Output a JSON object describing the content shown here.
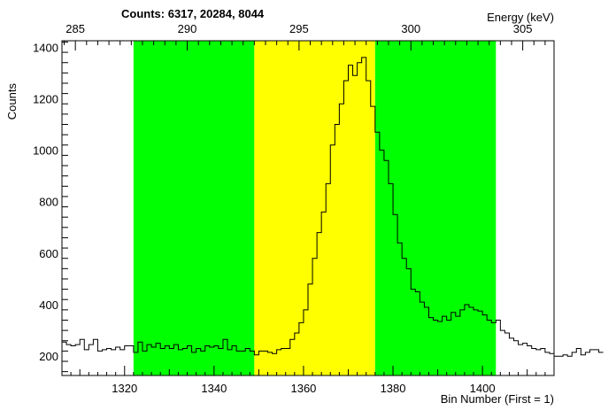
{
  "chart_data": {
    "type": "histogram",
    "title": "Counts:   6317,   20284,   8044",
    "xlabel": "Bin Number (First = 1)",
    "ylabel": "Counts",
    "top_axis_label": "Energy (keV)",
    "xlim": [
      1306,
      1416
    ],
    "ylim": [
      125,
      1425
    ],
    "grid": false,
    "x_ticks": [
      1320,
      1340,
      1360,
      1380,
      1400
    ],
    "y_ticks": [
      200,
      400,
      600,
      800,
      1000,
      1200,
      1400
    ],
    "energy_ticks": [
      285,
      290,
      295,
      300,
      305
    ],
    "energy_calibration": {
      "bin_ref": 1360,
      "energy_ref": 295.2,
      "kev_per_bin": 0.2
    },
    "regions": [
      {
        "from": 1322,
        "to": 1349,
        "color": "#00ff00"
      },
      {
        "from": 1349,
        "to": 1376,
        "color": "#ffff00"
      },
      {
        "from": 1376,
        "to": 1403,
        "color": "#00ff00"
      }
    ],
    "bins_start": 1306,
    "bin_width": 1,
    "values": [
      255,
      245,
      240,
      245,
      265,
      225,
      245,
      265,
      220,
      225,
      230,
      225,
      235,
      225,
      240,
      240,
      215,
      255,
      220,
      245,
      235,
      250,
      230,
      240,
      230,
      245,
      225,
      230,
      240,
      215,
      230,
      220,
      240,
      235,
      240,
      230,
      265,
      225,
      240,
      220,
      220,
      230,
      220,
      205,
      220,
      220,
      215,
      210,
      225,
      230,
      230,
      265,
      290,
      330,
      380,
      480,
      580,
      680,
      760,
      870,
      1020,
      1100,
      1180,
      1270,
      1330,
      1290,
      1340,
      1360,
      1270,
      1170,
      1070,
      1000,
      960,
      870,
      750,
      640,
      580,
      540,
      460,
      450,
      410,
      390,
      350,
      340,
      335,
      355,
      340,
      370,
      355,
      380,
      400,
      390,
      380,
      375,
      360,
      340,
      330,
      340,
      300,
      290,
      270,
      260,
      245,
      250,
      240,
      230,
      225,
      230,
      215,
      210,
      200,
      200,
      205,
      200,
      215,
      230,
      205,
      215,
      225,
      225,
      215
    ],
    "line_color": "#000000"
  }
}
